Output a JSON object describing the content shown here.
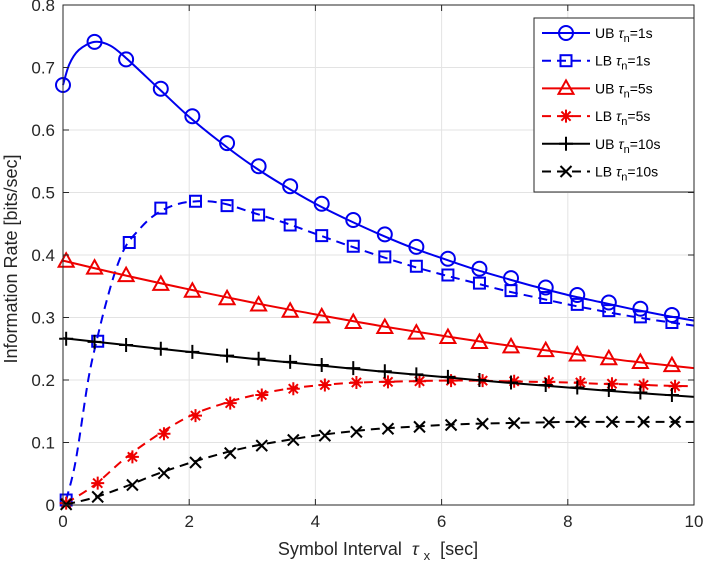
{
  "chart_data": {
    "type": "line",
    "title": "",
    "xlabel": "Symbol Interval",
    "xlabel_symbol": "τ",
    "xlabel_sub": "x",
    "xlabel_unit": "[sec]",
    "ylabel": "Information Rate [bits/sec]",
    "xlim": [
      0,
      10
    ],
    "ylim": [
      0,
      0.8
    ],
    "xticks": [
      0,
      2,
      4,
      6,
      8,
      10
    ],
    "xtick_labels": [
      "0",
      "2",
      "4",
      "6",
      "8",
      "10"
    ],
    "yticks": [
      0,
      0.1,
      0.2,
      0.3,
      0.4,
      0.5,
      0.6,
      0.7,
      0.8
    ],
    "ytick_labels": [
      "0",
      "0.1",
      "0.2",
      "0.3",
      "0.4",
      "0.5",
      "0.6",
      "0.7",
      "0.8"
    ],
    "grid": true,
    "legend_position": "top-right",
    "series": [
      {
        "name": "UB τn=1s",
        "legend_prefix": "UB ",
        "legend_symbol": "τ",
        "legend_sub": "n",
        "legend_suffix": "=1s",
        "color": "#0000ee",
        "line_style": "solid",
        "marker": "circle",
        "curve": [
          [
            0,
            0.672
          ],
          [
            0.1,
            0.705
          ],
          [
            0.25,
            0.728
          ],
          [
            0.5,
            0.741
          ],
          [
            0.75,
            0.735
          ],
          [
            1,
            0.715
          ],
          [
            1.5,
            0.668
          ],
          [
            2,
            0.621
          ],
          [
            2.5,
            0.58
          ],
          [
            3,
            0.543
          ],
          [
            3.5,
            0.511
          ],
          [
            4,
            0.482
          ],
          [
            4.5,
            0.457
          ],
          [
            5,
            0.434
          ],
          [
            5.5,
            0.413
          ],
          [
            6,
            0.395
          ],
          [
            6.5,
            0.378
          ],
          [
            7,
            0.363
          ],
          [
            7.5,
            0.349
          ],
          [
            8,
            0.336
          ],
          [
            8.5,
            0.325
          ],
          [
            9,
            0.314
          ],
          [
            9.5,
            0.304
          ],
          [
            10,
            0.295
          ]
        ],
        "markers_x": [
          0,
          0.5,
          1.0,
          1.55,
          2.05,
          2.6,
          3.1,
          3.6,
          4.1,
          4.6,
          5.1,
          5.6,
          6.1,
          6.6,
          7.1,
          7.65,
          8.15,
          8.65,
          9.15,
          9.65
        ],
        "markers_y": [
          0.672,
          0.741,
          0.713,
          0.666,
          0.622,
          0.579,
          0.542,
          0.51,
          0.482,
          0.456,
          0.433,
          0.413,
          0.394,
          0.378,
          0.363,
          0.348,
          0.336,
          0.324,
          0.314,
          0.304
        ]
      },
      {
        "name": "LB τn=1s",
        "legend_prefix": "LB ",
        "legend_symbol": "τ",
        "legend_sub": "n",
        "legend_suffix": "=1s",
        "color": "#0000ee",
        "line_style": "dashed",
        "marker": "square",
        "curve": [
          [
            0.05,
            0.008
          ],
          [
            0.2,
            0.07
          ],
          [
            0.4,
            0.2
          ],
          [
            0.55,
            0.27
          ],
          [
            0.7,
            0.33
          ],
          [
            0.85,
            0.38
          ],
          [
            1.0,
            0.415
          ],
          [
            1.2,
            0.44
          ],
          [
            1.4,
            0.46
          ],
          [
            1.6,
            0.473
          ],
          [
            1.8,
            0.481
          ],
          [
            2.0,
            0.485
          ],
          [
            2.3,
            0.486
          ],
          [
            2.6,
            0.481
          ],
          [
            3.0,
            0.468
          ],
          [
            3.5,
            0.452
          ],
          [
            4,
            0.434
          ],
          [
            4.5,
            0.416
          ],
          [
            5,
            0.399
          ],
          [
            5.5,
            0.383
          ],
          [
            6,
            0.369
          ],
          [
            6.5,
            0.356
          ],
          [
            7,
            0.343
          ],
          [
            7.5,
            0.332
          ],
          [
            8,
            0.321
          ],
          [
            8.5,
            0.311
          ],
          [
            9,
            0.302
          ],
          [
            9.5,
            0.294
          ],
          [
            10,
            0.287
          ]
        ],
        "markers_x": [
          0.05,
          0.55,
          1.05,
          1.55,
          2.1,
          2.6,
          3.1,
          3.6,
          4.1,
          4.6,
          5.1,
          5.6,
          6.1,
          6.6,
          7.1,
          7.65,
          8.15,
          8.65,
          9.15,
          9.65
        ],
        "markers_y": [
          0.008,
          0.262,
          0.42,
          0.475,
          0.486,
          0.479,
          0.464,
          0.448,
          0.431,
          0.414,
          0.397,
          0.382,
          0.368,
          0.355,
          0.343,
          0.332,
          0.321,
          0.311,
          0.301,
          0.292
        ]
      },
      {
        "name": "UB τn=5s",
        "legend_prefix": "UB ",
        "legend_symbol": "τ",
        "legend_sub": "n",
        "legend_suffix": "=5s",
        "color": "#ee0000",
        "line_style": "solid",
        "marker": "triangle",
        "curve": [
          [
            0,
            0.391
          ],
          [
            1,
            0.367
          ],
          [
            2,
            0.345
          ],
          [
            3,
            0.324
          ],
          [
            4,
            0.305
          ],
          [
            5,
            0.287
          ],
          [
            6,
            0.271
          ],
          [
            7,
            0.256
          ],
          [
            8,
            0.243
          ],
          [
            9,
            0.23
          ],
          [
            10,
            0.219
          ]
        ],
        "markers_x": [
          0.05,
          0.5,
          1.0,
          1.55,
          2.05,
          2.6,
          3.1,
          3.6,
          4.1,
          4.6,
          5.1,
          5.6,
          6.1,
          6.6,
          7.1,
          7.65,
          8.15,
          8.65,
          9.15,
          9.65
        ],
        "markers_y": [
          0.39,
          0.379,
          0.367,
          0.353,
          0.342,
          0.33,
          0.32,
          0.31,
          0.301,
          0.292,
          0.284,
          0.275,
          0.268,
          0.26,
          0.253,
          0.247,
          0.24,
          0.234,
          0.228,
          0.223
        ]
      },
      {
        "name": "LB τn=5s",
        "legend_prefix": "LB ",
        "legend_symbol": "τ",
        "legend_sub": "n",
        "legend_suffix": "=5s",
        "color": "#ee0000",
        "line_style": "dashed",
        "marker": "asterisk",
        "curve": [
          [
            0.05,
            0.003
          ],
          [
            0.5,
            0.032
          ],
          [
            1,
            0.076
          ],
          [
            1.5,
            0.112
          ],
          [
            2,
            0.142
          ],
          [
            2.5,
            0.161
          ],
          [
            3,
            0.175
          ],
          [
            3.5,
            0.185
          ],
          [
            4,
            0.191
          ],
          [
            4.5,
            0.195
          ],
          [
            5,
            0.197
          ],
          [
            5.5,
            0.198
          ],
          [
            6,
            0.199
          ],
          [
            6.5,
            0.199
          ],
          [
            7,
            0.198
          ],
          [
            7.5,
            0.197
          ],
          [
            8,
            0.196
          ],
          [
            8.5,
            0.194
          ],
          [
            9,
            0.193
          ],
          [
            9.5,
            0.191
          ],
          [
            10,
            0.19
          ]
        ],
        "markers_x": [
          0.05,
          0.55,
          1.1,
          1.6,
          2.1,
          2.65,
          3.15,
          3.65,
          4.15,
          4.65,
          5.15,
          5.65,
          6.15,
          6.65,
          7.15,
          7.7,
          8.2,
          8.7,
          9.2,
          9.7
        ],
        "markers_y": [
          0.003,
          0.035,
          0.077,
          0.114,
          0.143,
          0.163,
          0.176,
          0.186,
          0.192,
          0.196,
          0.197,
          0.198,
          0.199,
          0.199,
          0.198,
          0.197,
          0.196,
          0.194,
          0.192,
          0.19
        ]
      },
      {
        "name": "UB τn=10s",
        "legend_prefix": "UB ",
        "legend_symbol": "τ",
        "legend_sub": "n",
        "legend_suffix": "=10s",
        "color": "#000000",
        "line_style": "solid",
        "marker": "plus",
        "curve": [
          [
            0,
            0.267
          ],
          [
            1,
            0.256
          ],
          [
            2,
            0.245
          ],
          [
            3,
            0.234
          ],
          [
            4,
            0.224
          ],
          [
            5,
            0.214
          ],
          [
            6,
            0.205
          ],
          [
            7,
            0.196
          ],
          [
            8,
            0.188
          ],
          [
            9,
            0.18
          ],
          [
            10,
            0.173
          ]
        ],
        "markers_x": [
          0.05,
          0.5,
          1.0,
          1.55,
          2.05,
          2.6,
          3.1,
          3.6,
          4.1,
          4.6,
          5.1,
          5.6,
          6.1,
          6.6,
          7.1,
          7.65,
          8.15,
          8.65,
          9.15,
          9.65
        ],
        "markers_y": [
          0.266,
          0.261,
          0.256,
          0.25,
          0.245,
          0.239,
          0.234,
          0.229,
          0.224,
          0.219,
          0.214,
          0.209,
          0.205,
          0.2,
          0.196,
          0.192,
          0.188,
          0.184,
          0.18,
          0.176
        ]
      },
      {
        "name": "LB τn=10s",
        "legend_prefix": "LB ",
        "legend_symbol": "τ",
        "legend_sub": "n",
        "legend_suffix": "=10s",
        "color": "#000000",
        "line_style": "dashed",
        "marker": "cross",
        "curve": [
          [
            0.05,
            0.001
          ],
          [
            0.5,
            0.012
          ],
          [
            1,
            0.03
          ],
          [
            1.5,
            0.05
          ],
          [
            2,
            0.067
          ],
          [
            2.5,
            0.082
          ],
          [
            3,
            0.094
          ],
          [
            3.5,
            0.103
          ],
          [
            4,
            0.111
          ],
          [
            4.5,
            0.117
          ],
          [
            5,
            0.122
          ],
          [
            5.5,
            0.125
          ],
          [
            6,
            0.128
          ],
          [
            6.5,
            0.13
          ],
          [
            7,
            0.131
          ],
          [
            7.5,
            0.132
          ],
          [
            8,
            0.133
          ],
          [
            8.5,
            0.133
          ],
          [
            9,
            0.133
          ],
          [
            9.5,
            0.133
          ],
          [
            10,
            0.133
          ]
        ],
        "markers_x": [
          0.05,
          0.55,
          1.1,
          1.6,
          2.1,
          2.65,
          3.15,
          3.65,
          4.15,
          4.65,
          5.15,
          5.65,
          6.15,
          6.65,
          7.15,
          7.7,
          8.2,
          8.7,
          9.2,
          9.7
        ],
        "markers_y": [
          0.001,
          0.013,
          0.032,
          0.051,
          0.068,
          0.083,
          0.095,
          0.104,
          0.111,
          0.117,
          0.122,
          0.125,
          0.128,
          0.13,
          0.131,
          0.132,
          0.133,
          0.133,
          0.133,
          0.133
        ]
      }
    ]
  }
}
